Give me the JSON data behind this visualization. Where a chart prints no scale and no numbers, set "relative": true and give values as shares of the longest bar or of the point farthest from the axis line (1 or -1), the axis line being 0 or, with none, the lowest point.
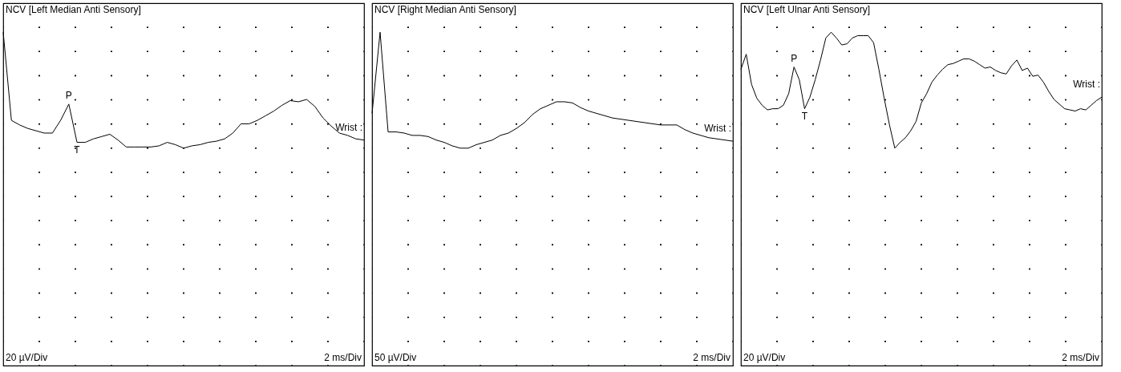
{
  "chart_data": [
    {
      "type": "line",
      "title": "NCV [Left Median Anti Sensory]",
      "xlabel": "2 ms/Div",
      "relative": true,
      "grid": true,
      "categories": [
        null,
        null,
        null,
        null,
        null,
        null,
        null,
        null,
        null,
        null,
        null,
        null,
        null,
        null,
        null,
        null,
        null,
        null,
        null,
        null,
        null,
        null,
        null,
        null,
        null,
        null,
        null,
        null,
        null,
        null,
        null,
        null,
        null,
        null,
        null,
        null,
        null,
        null,
        null,
        null,
        null,
        null,
        null,
        null,
        null
      ],
      "series": [
        {
          "name": "Wrist :",
          "color": "#000000",
          "values": [
            1,
            0.24,
            0.2,
            0.17,
            0.15,
            0.13,
            0.13,
            0.24,
            0.38,
            0.05,
            0.05,
            0.08,
            0.1,
            0.12,
            0.07,
            0.01,
            0.01,
            0.01,
            0.01,
            0.02,
            0.05,
            0.03,
            0,
            0.02,
            0.03,
            0.05,
            0.06,
            0.08,
            0.13,
            0.21,
            0.21,
            0.24,
            0.28,
            0.32,
            0.37,
            0.41,
            0.4,
            0.42,
            0.36,
            0.26,
            0.19,
            0.13,
            0.11,
            0.08,
            0.07
          ]
        }
      ],
      "annotations": [
        "20 µV/Div",
        {
          "text": "P",
          "y": 0.38
        },
        {
          "text": "T",
          "y": 0.05
        }
      ]
    },
    {
      "type": "line",
      "title": "NCV [Right Median Anti Sensory]",
      "xlabel": "2 ms/Div",
      "relative": true,
      "grid": true,
      "annotations": [
        "50 µV/Div"
      ],
      "categories": [
        null,
        null,
        null,
        null,
        null,
        null,
        null,
        null,
        null,
        null,
        null,
        null,
        null,
        null,
        null,
        null,
        null,
        null,
        null,
        null,
        null,
        null,
        null,
        null,
        null,
        null,
        null,
        null,
        null,
        null,
        null,
        null,
        null,
        null,
        null,
        null,
        null,
        null,
        null,
        null,
        null,
        null,
        null,
        null,
        null,
        null
      ],
      "series": [
        {
          "name": "Wrist :",
          "color": "#000000",
          "values": [
            0.3,
            1,
            0.14,
            0.14,
            0.13,
            0.11,
            0.11,
            0.1,
            0.07,
            0.05,
            0.02,
            0,
            0,
            0.03,
            0.05,
            0.07,
            0.11,
            0.13,
            0.17,
            0.22,
            0.29,
            0.34,
            0.37,
            0.4,
            0.4,
            0.39,
            0.35,
            0.32,
            0.3,
            0.28,
            0.26,
            0.25,
            0.24,
            0.23,
            0.22,
            0.21,
            0.2,
            0.2,
            0.2,
            0.16,
            0.13,
            0.11,
            0.09,
            0.08,
            0.07,
            0.06
          ]
        }
      ]
    },
    {
      "type": "line",
      "title": "NCV [Left Ulnar Anti Sensory]",
      "xlabel": "2 ms/Div",
      "relative": true,
      "grid": true,
      "categories": [
        null,
        null,
        null,
        null,
        null,
        null,
        null,
        null,
        null,
        null,
        null,
        null,
        null,
        null,
        null,
        null,
        null,
        null,
        null,
        null,
        null,
        null,
        null,
        null,
        null,
        null,
        null,
        null,
        null,
        null,
        null,
        null,
        null,
        null,
        null,
        null,
        null,
        null,
        null,
        null,
        null,
        null,
        null,
        null,
        null,
        null,
        null,
        null,
        null,
        null,
        null,
        null,
        null,
        null,
        null,
        null,
        null,
        null,
        null,
        null,
        null,
        null,
        null,
        null,
        null,
        null,
        null,
        null,
        null
      ],
      "series": [
        {
          "name": "Wrist :",
          "color": "#000000",
          "values": [
            0.68,
            0.81,
            0.55,
            0.43,
            0.37,
            0.33,
            0.34,
            0.34,
            0.37,
            0.47,
            0.7,
            0.59,
            0.34,
            0.44,
            0.59,
            0.76,
            0.95,
            1,
            0.95,
            0.89,
            0.9,
            0.95,
            0.97,
            0.97,
            0.97,
            0.91,
            0.68,
            0.43,
            0.2,
            0,
            0.05,
            0.09,
            0.15,
            0.23,
            0.39,
            0.47,
            0.57,
            0.63,
            0.68,
            0.72,
            0.73,
            0.75,
            0.77,
            0.77,
            0.75,
            0.72,
            0.69,
            0.7,
            0.67,
            0.65,
            0.64,
            0.71,
            0.76,
            0.67,
            0.69,
            0.62,
            0.63,
            0.57,
            0.49,
            0.42,
            0.38,
            0.34,
            0.33,
            0.32,
            0.34,
            0.33,
            0.37,
            0.41,
            0.44
          ]
        }
      ],
      "annotations": [
        "20 µV/Div",
        {
          "text": "P",
          "y": 0.7
        },
        {
          "text": "T",
          "y": 0.34
        }
      ]
    }
  ]
}
